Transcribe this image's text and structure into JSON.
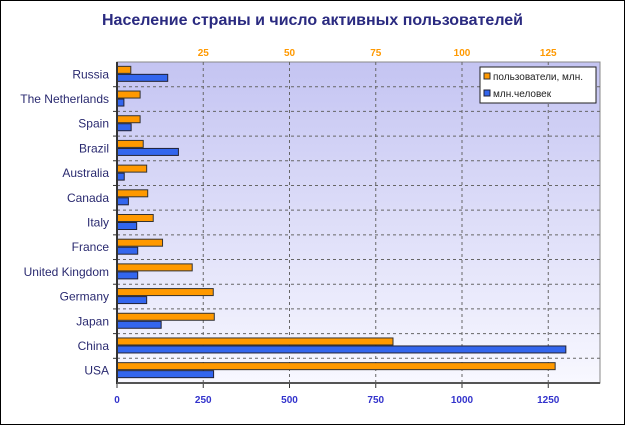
{
  "chart_data": {
    "type": "bar",
    "orientation": "horizontal",
    "title": "Население страны и число активных пользователей",
    "categories": [
      "Russia",
      "The Netherlands",
      "Spain",
      "Brazil",
      "Australia",
      "Canada",
      "Italy",
      "France",
      "United Kingdom",
      "Germany",
      "Japan",
      "China",
      "USA"
    ],
    "series": [
      {
        "name": "пользователи, млн.",
        "axis": "top",
        "color": "#ff9900",
        "values": [
          4.0,
          6.7,
          6.7,
          7.6,
          8.6,
          8.9,
          10.5,
          13.2,
          21.8,
          27.9,
          28.2,
          80,
          127
        ]
      },
      {
        "name": "млн.человек",
        "axis": "bottom",
        "color": "#3366ee",
        "values": [
          147,
          20,
          41,
          178,
          21,
          33,
          57,
          60,
          60,
          86,
          128,
          1301,
          280
        ]
      }
    ],
    "bottom_axis": {
      "range": [
        0,
        1400
      ],
      "ticks": [
        "0",
        "250",
        "500",
        "750",
        "1000",
        "1250"
      ],
      "tick_values": [
        0,
        250,
        500,
        750,
        1000,
        1250
      ]
    },
    "top_axis": {
      "range": [
        0,
        140
      ],
      "ticks": [
        "25",
        "50",
        "75",
        "100",
        "125"
      ],
      "tick_values": [
        25,
        50,
        75,
        100,
        125
      ]
    },
    "grid": true,
    "legend_position": "top-right"
  }
}
